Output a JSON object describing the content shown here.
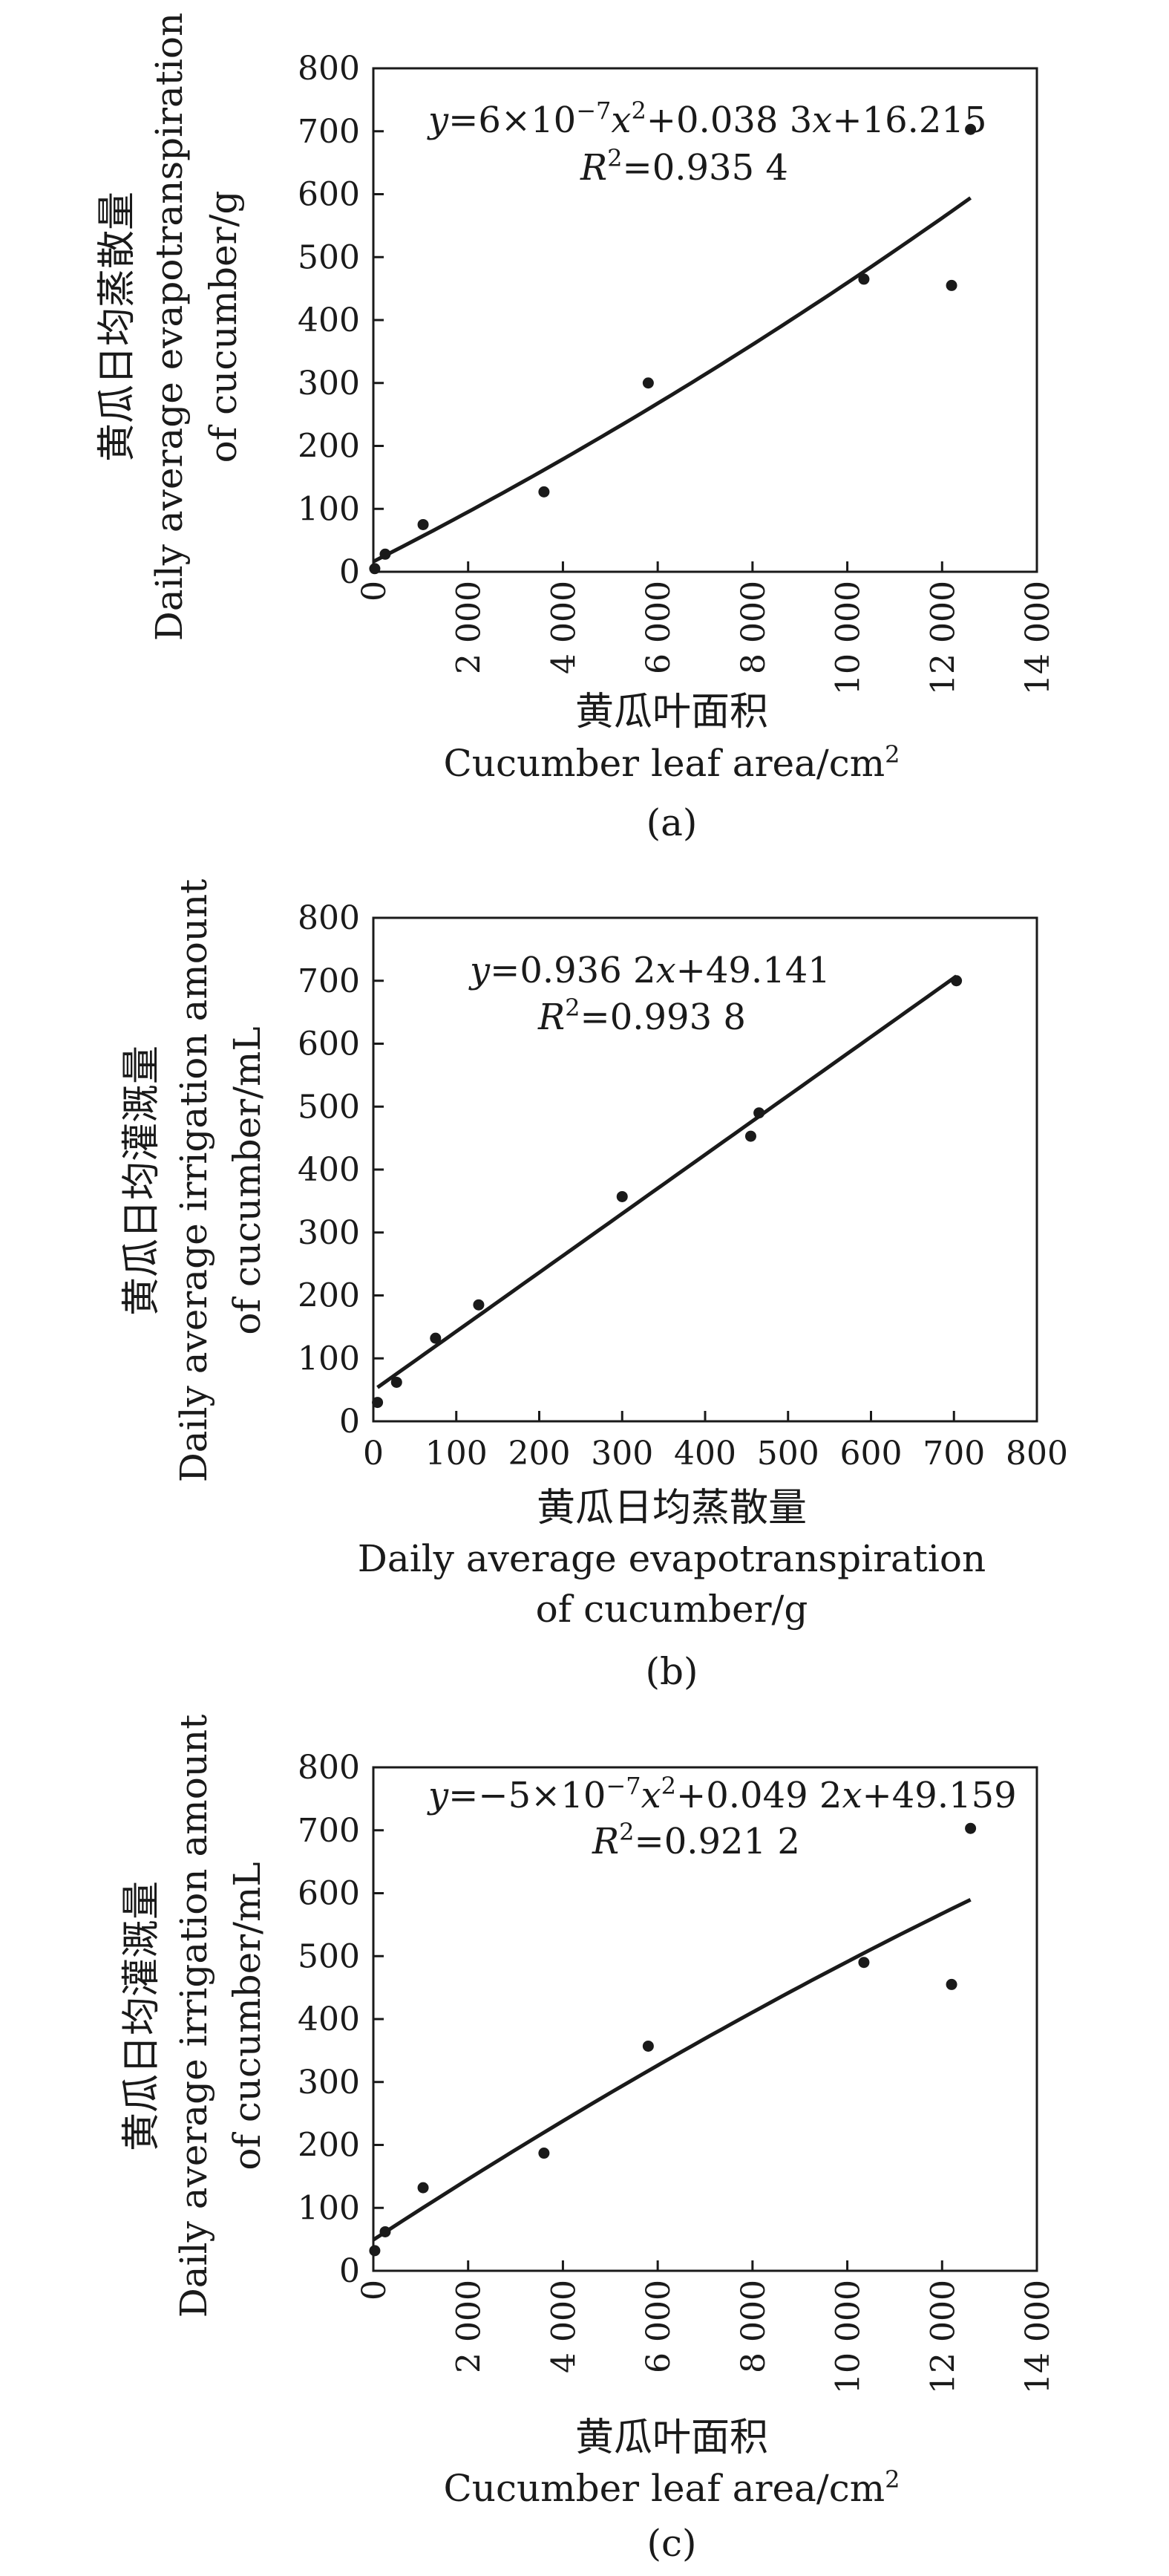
{
  "chart_data": [
    {
      "id": "a",
      "type": "scatter",
      "panel_label": "(a)",
      "xlabel_cn": "黄瓜叶面积",
      "xlabel": "Cucumber leaf area/cm",
      "xlabel_sup": "2",
      "ylabel_cn": "黄瓜日均蒸散量",
      "ylabel": [
        "Daily average evapotranspiration",
        "of cucumber/g"
      ],
      "xlim": [
        0,
        14000
      ],
      "ylim": [
        0,
        800
      ],
      "xticks": [
        0,
        2000,
        4000,
        6000,
        8000,
        10000,
        12000,
        14000
      ],
      "xtick_labels": [
        "0",
        "2 000",
        "4 000",
        "6 000",
        "8 000",
        "10 000",
        "12 000",
        "14 000"
      ],
      "xtick_rotated": true,
      "yticks": [
        0,
        100,
        200,
        300,
        400,
        500,
        600,
        700,
        800
      ],
      "ytick_labels": [
        "0",
        "100",
        "200",
        "300",
        "400",
        "500",
        "600",
        "700",
        "800"
      ],
      "points": [
        [
          30,
          5
        ],
        [
          250,
          28
        ],
        [
          1050,
          75
        ],
        [
          3600,
          127
        ],
        [
          5800,
          300
        ],
        [
          10350,
          465
        ],
        [
          12200,
          455
        ],
        [
          12600,
          703
        ]
      ],
      "fit": {
        "kind": "quadratic",
        "coefficients": [
          6e-07,
          0.0383,
          16.215
        ],
        "range": [
          0,
          12600
        ]
      },
      "equation": {
        "y": "y",
        "eq1": "=6×10",
        "exp1": "−7",
        "x": "x",
        "exp2": "2",
        "eq2": "+0.038 3",
        "x2": "x",
        "eq3": "+16.215"
      },
      "r2": {
        "r": "R",
        "sup": "2",
        "value": "=0.935 4"
      }
    },
    {
      "id": "b",
      "type": "scatter",
      "panel_label": "(b)",
      "xlabel_cn": "黄瓜日均蒸散量",
      "xlabel": [
        "Daily average evapotranspiration",
        "of cucumber/g"
      ],
      "ylabel_cn": "黄瓜日均灌溉量",
      "ylabel": [
        "Daily average irrigation amount",
        "of cucumber/mL"
      ],
      "xlim": [
        0,
        800
      ],
      "ylim": [
        0,
        800
      ],
      "xticks": [
        0,
        100,
        200,
        300,
        400,
        500,
        600,
        700,
        800
      ],
      "xtick_labels": [
        "0",
        "100",
        "200",
        "300",
        "400",
        "500",
        "600",
        "700",
        "800"
      ],
      "xtick_rotated": false,
      "yticks": [
        0,
        100,
        200,
        300,
        400,
        500,
        600,
        700,
        800
      ],
      "ytick_labels": [
        "0",
        "100",
        "200",
        "300",
        "400",
        "500",
        "600",
        "700",
        "800"
      ],
      "points": [
        [
          5,
          30
        ],
        [
          28,
          62
        ],
        [
          75,
          132
        ],
        [
          127,
          185
        ],
        [
          300,
          357
        ],
        [
          455,
          453
        ],
        [
          465,
          490
        ],
        [
          703,
          700
        ]
      ],
      "fit": {
        "kind": "linear",
        "coefficients": [
          0.9362,
          49.141
        ],
        "range": [
          5,
          703
        ]
      },
      "equation": {
        "y": "y",
        "eq1": "=0.936 2",
        "x": "x",
        "eq2": "+49.141"
      },
      "r2": {
        "r": "R",
        "sup": "2",
        "value": "=0.993 8"
      }
    },
    {
      "id": "c",
      "type": "scatter",
      "panel_label": "(c)",
      "xlabel_cn": "黄瓜叶面积",
      "xlabel": "Cucumber leaf area/cm",
      "xlabel_sup": "2",
      "ylabel_cn": "黄瓜日均灌溉量",
      "ylabel": [
        "Daily average irrigation amount",
        "of cucumber/mL"
      ],
      "xlim": [
        0,
        14000
      ],
      "ylim": [
        0,
        800
      ],
      "xticks": [
        0,
        2000,
        4000,
        6000,
        8000,
        10000,
        12000,
        14000
      ],
      "xtick_labels": [
        "0",
        "2 000",
        "4 000",
        "6 000",
        "8 000",
        "10 000",
        "12 000",
        "14 000"
      ],
      "xtick_rotated": true,
      "yticks": [
        0,
        100,
        200,
        300,
        400,
        500,
        600,
        700,
        800
      ],
      "ytick_labels": [
        "0",
        "100",
        "200",
        "300",
        "400",
        "500",
        "600",
        "700",
        "800"
      ],
      "points": [
        [
          30,
          32
        ],
        [
          250,
          62
        ],
        [
          1050,
          132
        ],
        [
          3600,
          187
        ],
        [
          5800,
          357
        ],
        [
          10350,
          490
        ],
        [
          12200,
          455
        ],
        [
          12600,
          703
        ]
      ],
      "fit": {
        "kind": "quadratic",
        "coefficients": [
          -5e-07,
          0.0492,
          49.159
        ],
        "range": [
          0,
          12600
        ]
      },
      "equation": {
        "y": "y",
        "eq1": "=−5×10",
        "exp1": "−7",
        "x": "x",
        "exp2": "2",
        "eq2": "+0.049 2",
        "x2": "x",
        "eq3": "+49.159"
      },
      "r2": {
        "r": "R",
        "sup": "2",
        "value": "=0.921 2"
      }
    }
  ]
}
